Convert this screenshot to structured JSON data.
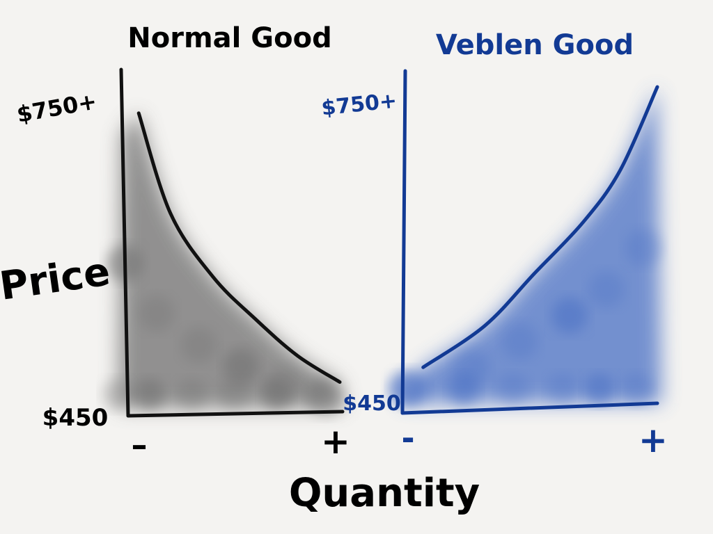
{
  "chart_data": [
    {
      "type": "line",
      "title": "Normal Good",
      "ylabel": "Price",
      "xlabel": "Quantity",
      "y_tick_labels": [
        "$750+",
        "$450"
      ],
      "x_tick_labels": [
        "–",
        "+"
      ],
      "ylim": [
        450,
        750
      ],
      "x": [
        0.05,
        0.2,
        0.4,
        0.6,
        0.8,
        1.0
      ],
      "values": [
        735,
        640,
        580,
        540,
        505,
        480
      ],
      "colors": {
        "ink": "#111111",
        "shade": "#6f6f6f"
      }
    },
    {
      "type": "line",
      "title": "Veblen Good",
      "y_tick_labels": [
        "$750+",
        "$450"
      ],
      "x_tick_labels": [
        "-",
        "+"
      ],
      "ylim": [
        450,
        750
      ],
      "x": [
        0.05,
        0.3,
        0.5,
        0.7,
        0.85,
        1.0
      ],
      "values": [
        490,
        530,
        580,
        630,
        680,
        760
      ],
      "colors": {
        "ink": "#123a94",
        "shade": "#4a6fc4"
      }
    }
  ]
}
